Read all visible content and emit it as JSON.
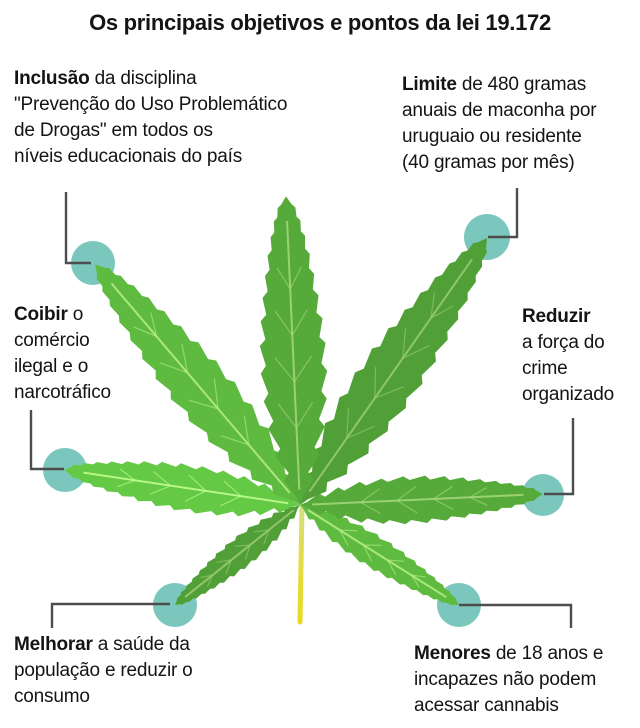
{
  "title": "Os principais objetivos e pontos da lei 19.172",
  "colors": {
    "accent_teal": "#7cc7bd",
    "leaf_green": "#55aa3a",
    "leaf_vein_light": "#a8d87d",
    "stem_yellow": "#e9d91f",
    "connector_gray": "#4d4d4d",
    "text_black": "#141414"
  },
  "labels": [
    {
      "id": "inclusao",
      "bold": "Inclusão",
      "lines": [
        "Inclusão da disciplina",
        "\"Prevenção do Uso Problemático",
        "de Drogas\" em todos os",
        "níveis educacionais do país"
      ]
    },
    {
      "id": "limite",
      "bold": "Limite",
      "lines": [
        "Limite de 480 gramas",
        "anuais de maconha por",
        "uruguaio ou residente",
        "(40 gramas por mês)"
      ]
    },
    {
      "id": "coibir",
      "bold": "Coibir",
      "lines": [
        "Coibir o",
        "comércio",
        "ilegal e o",
        "narcotráfico"
      ]
    },
    {
      "id": "reduzir",
      "bold": "Reduzir",
      "lines": [
        "Reduzir",
        "a força do",
        "crime",
        "organizado"
      ]
    },
    {
      "id": "melhorar",
      "bold": "Melhorar",
      "lines": [
        "Melhorar a saúde da",
        "população e reduzir o",
        "consumo"
      ]
    },
    {
      "id": "menores",
      "bold": "Menores",
      "lines": [
        "Menores de 18 anos e",
        "incapazes não podem",
        "acessar cannabis"
      ]
    }
  ]
}
